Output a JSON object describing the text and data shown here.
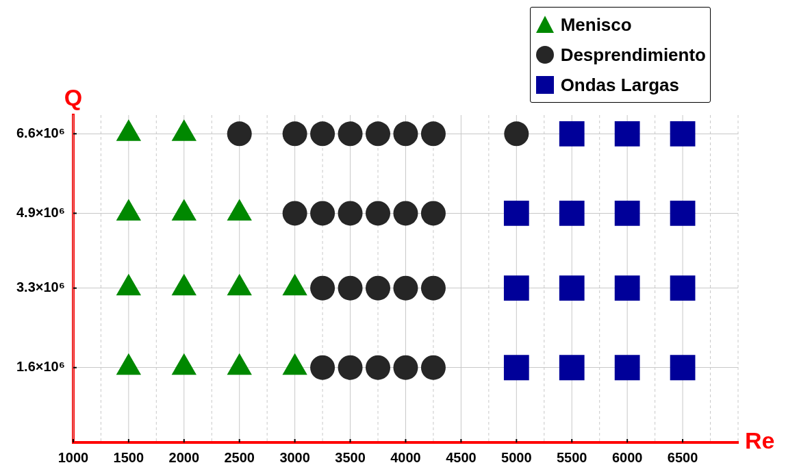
{
  "chart_data": {
    "type": "scatter",
    "xlabel": "Re",
    "ylabel": "Q",
    "xlim": [
      1000,
      7000
    ],
    "ylim": [
      0,
      7000000
    ],
    "xticks": [
      1000,
      {
        "value": 1250,
        "label": null
      },
      1500,
      {
        "value": 1750,
        "label": null
      },
      2000,
      {
        "value": 2250,
        "label": null
      },
      2500,
      {
        "value": 2750,
        "label": null
      },
      3000,
      {
        "value": 3250,
        "label": null
      },
      3500,
      {
        "value": 3750,
        "label": null
      },
      4000,
      {
        "value": 4250,
        "label": null
      },
      4500,
      {
        "value": 4750,
        "label": null
      },
      5000,
      {
        "value": 5250,
        "label": null
      },
      5500,
      {
        "value": 5750,
        "label": null
      },
      6000,
      {
        "value": 6250,
        "label": null
      },
      6500,
      {
        "value": 6750,
        "label": null
      },
      {
        "value": 7000,
        "label": null
      }
    ],
    "yticks": [
      {
        "value": 1600000,
        "label": "1.6×10⁶"
      },
      {
        "value": 3300000,
        "label": "3.3×10⁶"
      },
      {
        "value": 4900000,
        "label": "4.9×10⁶"
      },
      {
        "value": 6600000,
        "label": "6.6×10⁶"
      }
    ],
    "grid": true,
    "legend": "top right",
    "series": [
      {
        "name": "Menisco",
        "color": "#008800",
        "marker": "triangle",
        "x": [
          1500,
          2000,
          1500,
          2000,
          2500,
          1500,
          2000,
          2500,
          3000,
          1500,
          2000,
          2500,
          3000
        ],
        "values": [
          6600000,
          6600000,
          4900000,
          4900000,
          4900000,
          3300000,
          3300000,
          3300000,
          3300000,
          1600000,
          1600000,
          1600000,
          1600000
        ]
      },
      {
        "name": "Desprendimiento",
        "color": "#262626",
        "marker": "circle",
        "x": [
          2500,
          3000,
          3250,
          3500,
          3750,
          4000,
          4250,
          5000,
          3000,
          3250,
          3500,
          3750,
          4000,
          4250,
          3250,
          3500,
          3750,
          4000,
          4250,
          3250,
          3500,
          3750,
          4000,
          4250
        ],
        "values": [
          6600000,
          6600000,
          6600000,
          6600000,
          6600000,
          6600000,
          6600000,
          6600000,
          4900000,
          4900000,
          4900000,
          4900000,
          4900000,
          4900000,
          3300000,
          3300000,
          3300000,
          3300000,
          3300000,
          1600000,
          1600000,
          1600000,
          1600000,
          1600000
        ]
      },
      {
        "name": "Ondas Largas",
        "color": "#000099",
        "marker": "square",
        "x": [
          5500,
          6000,
          6500,
          5000,
          5500,
          6000,
          6500,
          5000,
          5500,
          6000,
          6500,
          5000,
          5500,
          6000,
          6500
        ],
        "values": [
          6600000,
          6600000,
          6600000,
          4900000,
          4900000,
          4900000,
          4900000,
          3300000,
          3300000,
          3300000,
          3300000,
          1600000,
          1600000,
          1600000,
          1600000
        ]
      }
    ]
  }
}
